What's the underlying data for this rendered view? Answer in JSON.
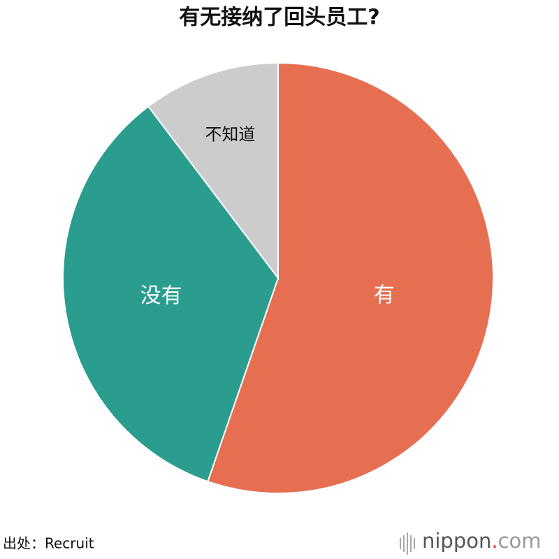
{
  "chart_data": {
    "type": "pie",
    "title": "有无接纳了回头员工?",
    "categories": [
      "有",
      "没有",
      "不知道"
    ],
    "values": [
      55.3,
      34.4,
      10.3
    ],
    "colors": [
      "#e66f52",
      "#2a9d8f",
      "#cccccc"
    ],
    "label_colors": [
      "#ffffff",
      "#ffffff",
      "#111111"
    ],
    "source": "出处：Recruit",
    "logo": [
      "nippon",
      ".",
      "com"
    ]
  }
}
